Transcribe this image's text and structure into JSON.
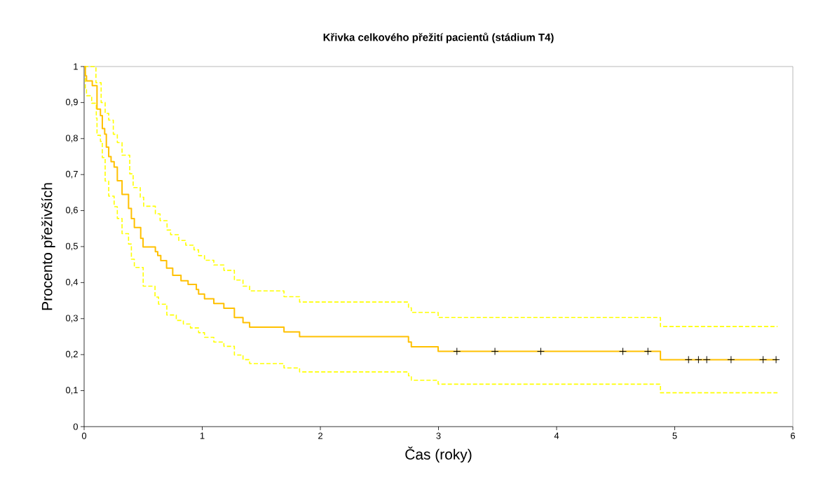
{
  "chart_data": {
    "type": "step",
    "title": "Křivka celkového přežití pacientů (stádium T4)",
    "xlabel": "Čas (roky)",
    "ylabel": "Procento přeživších",
    "xlim": [
      0,
      6
    ],
    "xticks": [
      0,
      1,
      2,
      3,
      4,
      5,
      6
    ],
    "ylim": [
      0,
      1
    ],
    "yticks": [
      0,
      {
        "value": 0.1,
        "label": "0,1"
      },
      {
        "value": 0.2,
        "label": "0,2"
      },
      {
        "value": 0.3,
        "label": "0,3"
      },
      {
        "value": 0.4,
        "label": "0,4"
      },
      {
        "value": 0.5,
        "label": "0,5"
      },
      {
        "value": 0.6,
        "label": "0,6"
      },
      {
        "value": 0.7,
        "label": "0,7"
      },
      {
        "value": 0.8,
        "label": "0,8"
      },
      {
        "value": 0.9,
        "label": "0,9"
      },
      1
    ],
    "series": [
      {
        "color": "#ffff00",
        "line_style": "dashed",
        "x": [
          0,
          0.1,
          0.144,
          0.178,
          0.208,
          0.247,
          0.281,
          0.321,
          0.386,
          0.415,
          0.475,
          0.504,
          0.603,
          0.643,
          0.702,
          0.732,
          0.801,
          0.86,
          0.93,
          0.969,
          1.019,
          1.098,
          1.183,
          1.272,
          1.345,
          1.401,
          1.692,
          1.824,
          2.746,
          2.77,
          2.997,
          4.879,
          5.87
        ],
        "values": [
          1,
          0.955,
          0.9,
          0.87,
          0.851,
          0.812,
          0.789,
          0.754,
          0.702,
          0.664,
          0.637,
          0.612,
          0.591,
          0.572,
          0.546,
          0.533,
          0.517,
          0.504,
          0.491,
          0.475,
          0.462,
          0.449,
          0.434,
          0.407,
          0.39,
          0.377,
          0.361,
          0.346,
          0.33,
          0.317,
          0.303,
          0.278,
          0.278
        ]
      },
      {
        "color": "#ffff00",
        "line_style": "dashed",
        "x": [
          0,
          0.01,
          0.02,
          0.064,
          0.103,
          0.109,
          0.138,
          0.154,
          0.178,
          0.208,
          0.254,
          0.281,
          0.321,
          0.376,
          0.4,
          0.425,
          0.5,
          0.6,
          0.63,
          0.7,
          0.78,
          0.84,
          0.9,
          0.969,
          1.019,
          1.098,
          1.183,
          1.272,
          1.345,
          1.401,
          1.692,
          1.824,
          2.746,
          2.77,
          2.997,
          4.879,
          5.87
        ],
        "values": [
          1,
          0.938,
          0.919,
          0.898,
          0.857,
          0.809,
          0.792,
          0.747,
          0.682,
          0.64,
          0.611,
          0.578,
          0.536,
          0.507,
          0.465,
          0.442,
          0.39,
          0.36,
          0.34,
          0.31,
          0.295,
          0.285,
          0.274,
          0.261,
          0.248,
          0.235,
          0.223,
          0.199,
          0.186,
          0.175,
          0.163,
          0.152,
          0.141,
          0.129,
          0.118,
          0.094,
          0.094
        ]
      },
      {
        "color": "#ffc000",
        "line_style": "solid",
        "x": [
          0,
          0.01,
          0.02,
          0.069,
          0.109,
          0.138,
          0.154,
          0.174,
          0.188,
          0.208,
          0.228,
          0.254,
          0.281,
          0.321,
          0.376,
          0.4,
          0.425,
          0.479,
          0.499,
          0.603,
          0.623,
          0.649,
          0.698,
          0.75,
          0.82,
          0.88,
          0.95,
          0.969,
          1.019,
          1.098,
          1.183,
          1.272,
          1.345,
          1.401,
          1.692,
          1.824,
          2.746,
          2.77,
          2.997,
          4.879,
          5.87
        ],
        "values": [
          1,
          0.974,
          0.96,
          0.947,
          0.882,
          0.864,
          0.828,
          0.812,
          0.776,
          0.75,
          0.736,
          0.721,
          0.683,
          0.645,
          0.606,
          0.578,
          0.553,
          0.523,
          0.499,
          0.486,
          0.475,
          0.461,
          0.44,
          0.42,
          0.405,
          0.395,
          0.381,
          0.368,
          0.355,
          0.342,
          0.329,
          0.303,
          0.289,
          0.276,
          0.263,
          0.25,
          0.235,
          0.222,
          0.209,
          0.186,
          0.186
        ]
      },
      {
        "type": "scatter",
        "marker": "cross",
        "color": "#000000",
        "x": [
          3.156,
          3.478,
          3.866,
          4.561,
          4.773,
          5.117,
          5.201,
          5.271,
          5.477,
          5.748,
          5.858
        ],
        "values": [
          0.209,
          0.209,
          0.209,
          0.209,
          0.209,
          0.186,
          0.186,
          0.186,
          0.186,
          0.186,
          0.186
        ]
      }
    ]
  }
}
